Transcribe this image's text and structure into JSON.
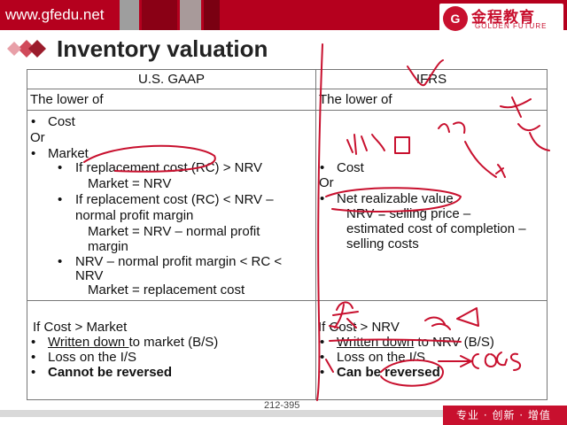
{
  "header": {
    "url": "www.gfedu.net",
    "logo_mark": "G",
    "logo_cn": "金程教育",
    "logo_en": "GOLDEN FUTURE"
  },
  "title": "Inventory valuation",
  "table": {
    "col1_header": "U.S. GAAP",
    "col2_header": "IFRS",
    "row1": {
      "left": "The lower of",
      "right": "The lower of"
    },
    "gaap": {
      "cost": "Cost",
      "or": "Or",
      "market": "Market",
      "b1": "If replacement cost (RC) > NRV",
      "b1_result": "Market = NRV",
      "b2_line1": "If replacement cost (RC) < NRV –",
      "b2_line2": "normal profit margin",
      "b2_result_line1": "Market  = NRV – normal profit",
      "b2_result_line2": "margin",
      "b3_line1": "NRV – normal profit margin < RC <",
      "b3_line2": "NRV",
      "b3_result": "Market = replacement cost"
    },
    "ifrs": {
      "cost": "Cost",
      "or": "Or",
      "nrv": "Net realizable value",
      "nrv_def_line1": "NRV = selling price –",
      "nrv_def_line2": "estimated cost of completion –",
      "nrv_def_line3": "selling costs"
    },
    "gaap_bottom": {
      "cond": "If Cost > Market",
      "l1_u": "Written down ",
      "l1_rest": "to market (B/S)",
      "l2": "Loss on the I/S",
      "l3": "Cannot be reversed"
    },
    "ifrs_bottom": {
      "cond": "If Cost > NRV",
      "l1_u": "Written down",
      "l1_rest": " to NRV (B/S)",
      "l2": "Loss on the I/S",
      "l3": "Can be reversed"
    }
  },
  "page_number": "212-395",
  "footer": "专业 · 创新 · 增值",
  "colors": {
    "brand_red": "#c8102e",
    "ink": "#c8102e"
  }
}
